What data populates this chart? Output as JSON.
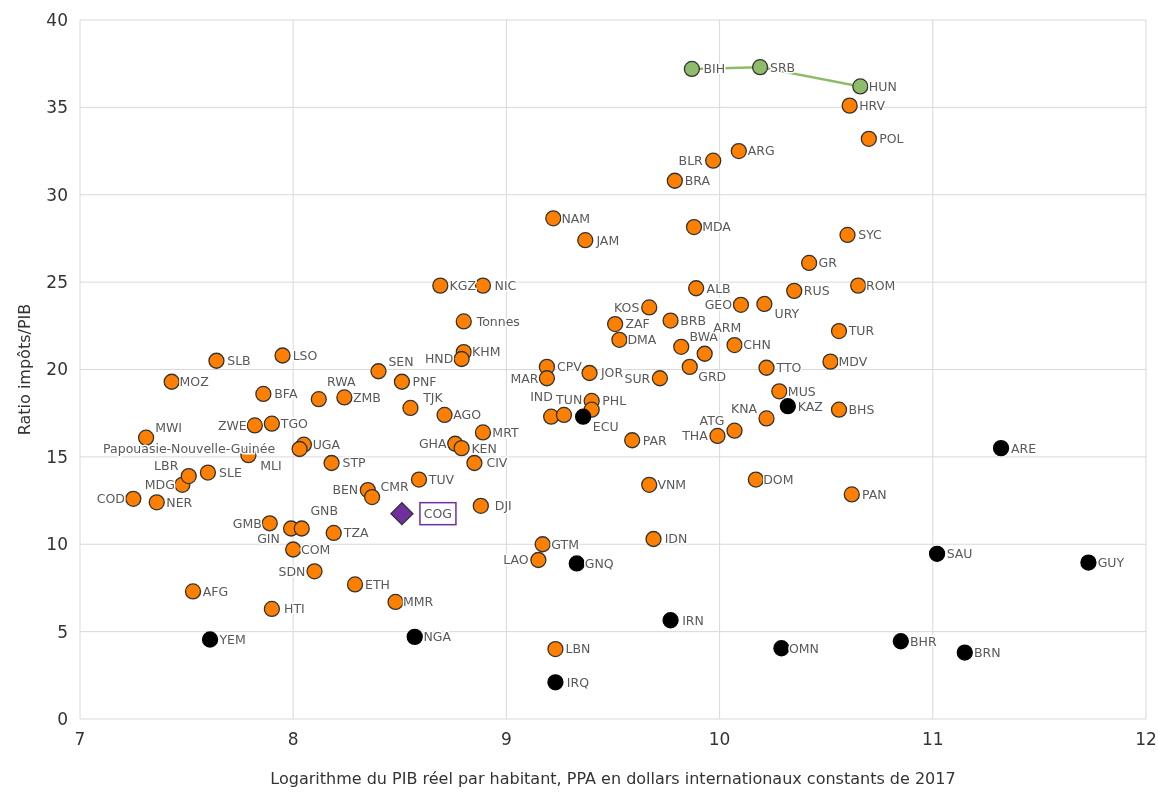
{
  "chart_data": {
    "type": "scatter",
    "xlabel": "Logarithme du PIB réel par habitant, PPA en dollars internationaux constants de 2017",
    "ylabel": "Ratio impôts/PIB",
    "xlim": [
      7,
      12
    ],
    "xticks": [
      7,
      8,
      9,
      10,
      11,
      12
    ],
    "ylim": [
      0,
      40
    ],
    "yticks": [
      0,
      5,
      10,
      15,
      20,
      25,
      30,
      35,
      40
    ],
    "grid": true,
    "series": [
      {
        "type": "scatter",
        "color": "#ff8000",
        "marker": "circle",
        "x": [
          7.31,
          7.25,
          7.36,
          7.48,
          7.51,
          7.6,
          7.43,
          7.64,
          7.95,
          7.86,
          7.82,
          7.9,
          7.79,
          8.05,
          8.03,
          8.18,
          8.12,
          8.24,
          8.4,
          8.51,
          8.55,
          8.71,
          8.89,
          8.76,
          8.79,
          8.85,
          8.59,
          8.35,
          8.37,
          8.88,
          7.89,
          7.99,
          8.04,
          8.19,
          8.0,
          8.1,
          8.29,
          8.48,
          7.53,
          7.9,
          8.69,
          8.89,
          8.8,
          8.8,
          8.79,
          9.19,
          9.19,
          9.39,
          9.4,
          9.4,
          9.21,
          9.27,
          9.51,
          9.67,
          9.77,
          9.53,
          9.72,
          9.59,
          9.86,
          9.82,
          9.93,
          10.07,
          9.89,
          10.1,
          10.21,
          10.35,
          10.65,
          10.42,
          10.6,
          10.56,
          10.52,
          10.22,
          10.28,
          10.22,
          10.07,
          9.99,
          10.56,
          10.17,
          10.62,
          9.67,
          9.69,
          9.17,
          9.15,
          9.23,
          9.22,
          9.37,
          9.88,
          9.79,
          9.97,
          10.09,
          10.61,
          10.7
        ],
        "values": [
          16.1,
          12.6,
          12.4,
          13.4,
          13.9,
          14.1,
          19.3,
          20.5,
          20.8,
          18.6,
          16.8,
          16.9,
          15.1,
          15.7,
          15.45,
          14.65,
          18.3,
          18.4,
          19.9,
          19.3,
          17.8,
          17.4,
          16.4,
          15.75,
          15.5,
          14.65,
          13.7,
          13.1,
          12.7,
          12.2,
          11.2,
          10.9,
          10.9,
          10.65,
          9.7,
          8.45,
          7.7,
          6.7,
          7.3,
          6.3,
          24.8,
          24.8,
          22.75,
          21.0,
          20.6,
          20.15,
          19.5,
          19.8,
          18.2,
          17.7,
          17.3,
          17.4,
          22.6,
          23.55,
          22.8,
          21.7,
          19.5,
          15.95,
          20.15,
          21.3,
          20.9,
          21.4,
          24.65,
          23.7,
          23.75,
          24.5,
          24.8,
          26.1,
          27.7,
          22.2,
          20.45,
          20.1,
          18.75,
          17.2,
          16.5,
          16.2,
          17.7,
          13.7,
          12.85,
          13.4,
          10.3,
          10.0,
          9.1,
          4.0,
          28.65,
          27.4,
          28.15,
          30.8,
          31.95,
          32.5,
          35.1,
          33.2
        ],
        "value_labels": [
          "MWI",
          "COD",
          "NER",
          "MDG",
          "LBR",
          "SLE",
          "MOZ",
          "SLB",
          "LSO",
          "BFA",
          "ZWE",
          "TGO",
          "MLI",
          "UGA",
          "Papouasie-Nouvelle-Guinée",
          "STP",
          "RWA",
          "ZMB",
          "SEN",
          "PNF",
          "TJK",
          "AGO",
          "MRT",
          "GHA",
          "KEN",
          "CIV",
          "TUV",
          "BEN",
          "CMR",
          "DJI",
          "GMB",
          "GIN",
          "GNB",
          "TZA",
          "COM",
          "SDN",
          "ETH",
          "MMR",
          "AFG",
          "HTI",
          "KGZ",
          "NIC",
          "Tonnes",
          "KHM",
          "HND",
          "CPV",
          "MAR",
          "JOR",
          "PHL",
          "TUN",
          null,
          "IND",
          "ZAF",
          "KOS",
          "BRB",
          "DMA",
          "SUR",
          "PAR",
          "GRD",
          "BWA",
          "ARM",
          "CHN",
          "ALB",
          "GEO",
          "URY",
          "RUS",
          "ROM",
          "GR",
          "SYC",
          "TUR",
          "MDV",
          "TTO",
          "MUS",
          "KNA",
          "ATG",
          "THA",
          "BHS",
          "DOM",
          "PAN",
          "VNM",
          "IDN",
          "GTM",
          "LAO",
          "LBN",
          "NAM",
          "JAM",
          "MDA",
          "BRA",
          "BLR",
          "ARG",
          "HRV",
          "POL"
        ]
      },
      {
        "type": "scatter",
        "color": "#000000",
        "marker": "circle",
        "x": [
          7.61,
          8.57,
          9.33,
          9.77,
          9.23,
          10.29,
          10.85,
          11.15,
          11.02,
          11.73,
          11.32,
          10.32,
          9.36
        ],
        "values": [
          4.55,
          4.7,
          8.9,
          5.65,
          2.1,
          4.05,
          4.45,
          3.8,
          9.45,
          8.95,
          15.5,
          17.9,
          17.3
        ],
        "value_labels": [
          "YEM",
          "NGA",
          "GNQ",
          "IRN",
          "IRQ",
          "OMN",
          "BHR",
          "BRN",
          "SAU",
          "GUY",
          "ARE",
          "KAZ",
          "ECU"
        ]
      },
      {
        "type": "line",
        "color": "#8fbc6b",
        "marker": "circle",
        "x": [
          9.87,
          10.19,
          10.66
        ],
        "values": [
          37.2,
          37.3,
          36.2
        ],
        "value_labels": [
          "BIH",
          "SRB",
          "HUN"
        ]
      },
      {
        "type": "scatter",
        "color": "#7030a0",
        "marker": "diamond",
        "x": [
          8.51
        ],
        "values": [
          11.75
        ],
        "value_labels": [
          "COG"
        ]
      }
    ]
  }
}
